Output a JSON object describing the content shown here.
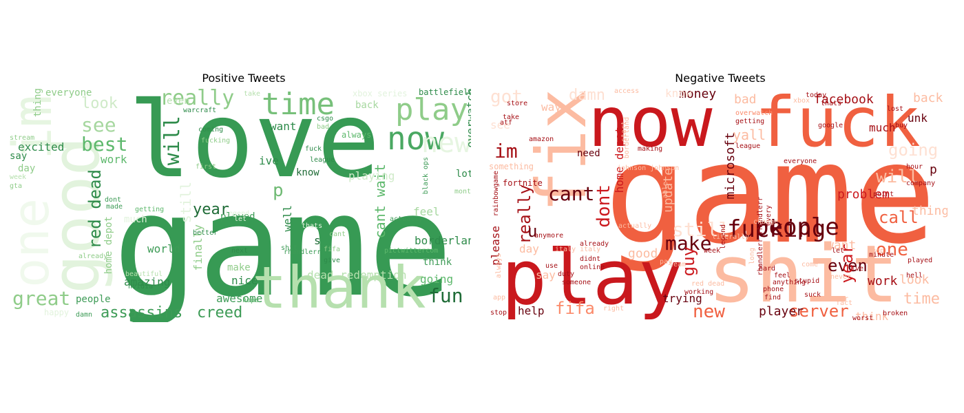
{
  "positive": {
    "title": "Positive Tweets",
    "words": [
      {
        "text": "game",
        "color": "#379a54"
      },
      {
        "text": "love",
        "color": "#379a54"
      },
      {
        "text": "thank",
        "color": "#b6e0ae"
      },
      {
        "text": "good",
        "color": "#e2f3dd"
      },
      {
        "text": "im",
        "color": "#e6f5e1"
      },
      {
        "text": "one",
        "color": "#f0f9ed"
      },
      {
        "text": "play",
        "color": "#8fcc89"
      },
      {
        "text": "now",
        "color": "#4aa862"
      },
      {
        "text": "time",
        "color": "#77c07a"
      },
      {
        "text": "really",
        "color": "#8fcc89"
      },
      {
        "text": "new",
        "color": "#e6f5e1"
      },
      {
        "text": "best",
        "color": "#5db86c"
      },
      {
        "text": "see",
        "color": "#a6d79f"
      },
      {
        "text": "look",
        "color": "#cfeac8"
      },
      {
        "text": "great",
        "color": "#8fcc89"
      },
      {
        "text": "will",
        "color": "#2e8b4a"
      },
      {
        "text": "red dead",
        "color": "#2e8b4a"
      },
      {
        "text": "fun",
        "color": "#1e6b36"
      },
      {
        "text": "assassins",
        "color": "#3d9b56"
      },
      {
        "text": "creed",
        "color": "#3d9b56"
      },
      {
        "text": "cant wait",
        "color": "#5db86c"
      },
      {
        "text": "year",
        "color": "#1e6b36"
      },
      {
        "text": "p",
        "color": "#6fba74"
      },
      {
        "text": "borderland",
        "color": "#2e8b4a"
      },
      {
        "text": "overwatch",
        "color": "#2e8b4a"
      },
      {
        "text": "everyone",
        "color": "#8fcc89"
      },
      {
        "text": "battlefield",
        "color": "#2e8b4a"
      },
      {
        "text": "back",
        "color": "#a6d79f"
      },
      {
        "text": "want",
        "color": "#2e8b4a"
      },
      {
        "text": "excited",
        "color": "#2e8b4a"
      },
      {
        "text": "say",
        "color": "#2e8b4a"
      },
      {
        "text": "day",
        "color": "#8fcc89"
      },
      {
        "text": "thing",
        "color": "#8fcc89"
      },
      {
        "text": "work",
        "color": "#5db86c"
      },
      {
        "text": "know",
        "color": "#1e6b36"
      },
      {
        "text": "played",
        "color": "#3d9b56"
      },
      {
        "text": "ive",
        "color": "#2e8b4a"
      },
      {
        "text": "lot",
        "color": "#2e8b4a"
      },
      {
        "text": "playing",
        "color": "#cfeac8"
      },
      {
        "text": "feel",
        "color": "#a6d79f"
      },
      {
        "text": "still",
        "color": "#e2f3dd"
      },
      {
        "text": "finally",
        "color": "#8fcc89"
      },
      {
        "text": "well",
        "color": "#2e8b4a"
      },
      {
        "text": "world",
        "color": "#3d9b56"
      },
      {
        "text": "make",
        "color": "#8fcc89"
      },
      {
        "text": "nice",
        "color": "#2e8b4a"
      },
      {
        "text": "awesome",
        "color": "#3d9b56"
      },
      {
        "text": "amazing",
        "color": "#2e8b4a"
      },
      {
        "text": "people",
        "color": "#3d9b56"
      },
      {
        "text": "going",
        "color": "#5db86c"
      },
      {
        "text": "think",
        "color": "#3d9b56"
      },
      {
        "text": "dead redemption",
        "color": "#b6e0ae"
      },
      {
        "text": "s",
        "color": "#1e6b36"
      },
      {
        "text": "home depot",
        "color": "#8fcc89"
      },
      {
        "text": "even",
        "color": "#b6e0ae"
      },
      {
        "text": "warcraft",
        "color": "#2e8b4a"
      },
      {
        "text": "always",
        "color": "#5db86c"
      },
      {
        "text": "coming",
        "color": "#2e8b4a"
      },
      {
        "text": "fucking",
        "color": "#8fcc89"
      },
      {
        "text": "first",
        "color": "#8fcc89"
      },
      {
        "text": "fuck",
        "color": "#2e8b4a"
      },
      {
        "text": "league",
        "color": "#2e8b4a"
      },
      {
        "text": "xbox series",
        "color": "#e2f3dd"
      },
      {
        "text": "csgo",
        "color": "#2e8b4a"
      },
      {
        "text": "bad",
        "color": "#8fcc89"
      },
      {
        "text": "rhandlerr",
        "color": "#3d9b56"
      },
      {
        "text": "shit",
        "color": "#3d9b56"
      },
      {
        "text": "next",
        "color": "#2e8b4a"
      },
      {
        "text": "better",
        "color": "#2e8b4a"
      },
      {
        "text": "getting",
        "color": "#5db86c"
      },
      {
        "text": "nvidia",
        "color": "#2e8b4a"
      },
      {
        "text": "hope",
        "color": "#5db86c"
      },
      {
        "text": "fifa",
        "color": "#8fcc89"
      },
      {
        "text": "give",
        "color": "#2e8b4a"
      },
      {
        "text": "pictwittercom",
        "color": "#5db86c"
      },
      {
        "text": "actually",
        "color": "#3d9b56"
      },
      {
        "text": "month",
        "color": "#8fcc89"
      },
      {
        "text": "dont",
        "color": "#3d9b56"
      },
      {
        "text": "made",
        "color": "#3d9b56"
      },
      {
        "text": "black ops",
        "color": "#3d9b56"
      },
      {
        "text": "stream",
        "color": "#8fcc89"
      },
      {
        "text": "week",
        "color": "#b6e0ae"
      },
      {
        "text": "already",
        "color": "#8fcc89"
      },
      {
        "text": "beautiful",
        "color": "#b6e0ae"
      },
      {
        "text": "happy",
        "color": "#e2f3dd"
      },
      {
        "text": "damn",
        "color": "#3d9b56"
      },
      {
        "text": "take",
        "color": "#b6e0ae"
      },
      {
        "text": "much",
        "color": "#e2f3dd"
      },
      {
        "text": "legend",
        "color": "#e2f3dd"
      },
      {
        "text": "thats",
        "color": "#e2f3dd"
      },
      {
        "text": "let",
        "color": "#e2f3dd"
      },
      {
        "text": "cant",
        "color": "#8fcc89"
      },
      {
        "text": "gta",
        "color": "#8fcc89"
      }
    ]
  },
  "negative": {
    "title": "Negative Tweets",
    "words": [
      {
        "text": "game",
        "color": "#f06040"
      },
      {
        "text": "now",
        "color": "#c9181d"
      },
      {
        "text": "fuck",
        "color": "#f06040"
      },
      {
        "text": "play",
        "color": "#c9181d"
      },
      {
        "text": "shit",
        "color": "#fcbba1"
      },
      {
        "text": "fix",
        "color": "#fcbba1"
      },
      {
        "text": "people",
        "color": "#67000d"
      },
      {
        "text": "fucking",
        "color": "#67000d"
      },
      {
        "text": "make",
        "color": "#67000d"
      },
      {
        "text": "im",
        "color": "#a50f15"
      },
      {
        "text": "cant",
        "color": "#67000d"
      },
      {
        "text": "dont",
        "color": "#cb181d"
      },
      {
        "text": "really",
        "color": "#a50f15"
      },
      {
        "text": "still",
        "color": "#fee0d2"
      },
      {
        "text": "fifa",
        "color": "#fb8a6a"
      },
      {
        "text": "server",
        "color": "#f06040"
      },
      {
        "text": "new",
        "color": "#f06040"
      },
      {
        "text": "one",
        "color": "#f06040"
      },
      {
        "text": "will",
        "color": "#fcbba1"
      },
      {
        "text": "call",
        "color": "#f06040"
      },
      {
        "text": "even",
        "color": "#67000d"
      },
      {
        "text": "year",
        "color": "#cb181d"
      },
      {
        "text": "guy",
        "color": "#cb181d"
      },
      {
        "text": "u",
        "color": "#67000d"
      },
      {
        "text": "got",
        "color": "#fee0d2"
      },
      {
        "text": "damn",
        "color": "#fee0d2"
      },
      {
        "text": "money",
        "color": "#67000d"
      },
      {
        "text": "facebook",
        "color": "#a50f15"
      },
      {
        "text": "going",
        "color": "#fee0d2"
      },
      {
        "text": "back",
        "color": "#fcbba1"
      },
      {
        "text": "unk",
        "color": "#67000d"
      },
      {
        "text": "much",
        "color": "#a50f15"
      },
      {
        "text": "yall",
        "color": "#fcbba1"
      },
      {
        "text": "bad",
        "color": "#fcbba1"
      },
      {
        "text": "problem",
        "color": "#cb181d"
      },
      {
        "text": "p",
        "color": "#67000d"
      },
      {
        "text": "thing",
        "color": "#fcbba1"
      },
      {
        "text": "time",
        "color": "#fcbba1"
      },
      {
        "text": "look",
        "color": "#fcbba1"
      },
      {
        "text": "work",
        "color": "#a50f15"
      },
      {
        "text": "player",
        "color": "#67000d"
      },
      {
        "text": "think",
        "color": "#fcbba1"
      },
      {
        "text": "trying",
        "color": "#67000d"
      },
      {
        "text": "help",
        "color": "#67000d"
      },
      {
        "text": "please",
        "color": "#a50f15"
      },
      {
        "text": "say",
        "color": "#fcbba1"
      },
      {
        "text": "day",
        "color": "#fcbba1"
      },
      {
        "text": "good",
        "color": "#fcbba1"
      },
      {
        "text": "want",
        "color": "#fcbba1"
      },
      {
        "text": "update",
        "color": "#fcbba1"
      },
      {
        "text": "microsoft",
        "color": "#67000d"
      },
      {
        "text": "home depot",
        "color": "#cb181d"
      },
      {
        "text": "need",
        "color": "#67000d"
      },
      {
        "text": "way",
        "color": "#fcbba1"
      },
      {
        "text": "see",
        "color": "#fee0d2"
      },
      {
        "text": "know",
        "color": "#fee0d2"
      },
      {
        "text": "something",
        "color": "#fcbba1"
      },
      {
        "text": "fortnite",
        "color": "#a50f15"
      },
      {
        "text": "johnson johnson",
        "color": "#fcbba1"
      },
      {
        "text": "league",
        "color": "#a50f15"
      },
      {
        "text": "overwatch",
        "color": "#fb8a6a"
      },
      {
        "text": "getting",
        "color": "#a50f15"
      },
      {
        "text": "everyone",
        "color": "#a50f15"
      },
      {
        "text": "google",
        "color": "#a50f15"
      },
      {
        "text": "thats",
        "color": "#a50f15"
      },
      {
        "text": "today",
        "color": "#a50f15"
      },
      {
        "text": "team",
        "color": "#fcbba1"
      },
      {
        "text": "actually",
        "color": "#fcbba1"
      },
      {
        "text": "already",
        "color": "#a50f15"
      },
      {
        "text": "didnt",
        "color": "#a50f15"
      },
      {
        "text": "online",
        "color": "#a50f15"
      },
      {
        "text": "right",
        "color": "#fcbba1"
      },
      {
        "text": "pay",
        "color": "#fcbba1"
      },
      {
        "text": "working",
        "color": "#a50f15"
      },
      {
        "text": "red dead",
        "color": "#fcbba1"
      },
      {
        "text": "feel",
        "color": "#a50f15"
      },
      {
        "text": "hard",
        "color": "#a50f15"
      },
      {
        "text": "anything",
        "color": "#a50f15"
      },
      {
        "text": "phone",
        "color": "#a50f15"
      },
      {
        "text": "find",
        "color": "#a50f15"
      },
      {
        "text": "come",
        "color": "#fcbba1"
      },
      {
        "text": "long",
        "color": "#fcbba1"
      },
      {
        "text": "stupid",
        "color": "#a50f15"
      },
      {
        "text": "suck",
        "color": "#a50f15"
      },
      {
        "text": "keep",
        "color": "#fcbba1"
      },
      {
        "text": "minute",
        "color": "#a50f15"
      },
      {
        "text": "ive",
        "color": "#a50f15"
      },
      {
        "text": "let",
        "color": "#a50f15"
      },
      {
        "text": "never",
        "color": "#fcbba1"
      },
      {
        "text": "played",
        "color": "#a50f15"
      },
      {
        "text": "hell",
        "color": "#a50f15"
      },
      {
        "text": "broken",
        "color": "#a50f15"
      },
      {
        "text": "worst",
        "color": "#a50f15"
      },
      {
        "text": "stop",
        "color": "#a50f15"
      },
      {
        "text": "use",
        "color": "#a50f15"
      },
      {
        "text": "app",
        "color": "#fcbba1"
      },
      {
        "text": "store",
        "color": "#a50f15"
      },
      {
        "text": "take",
        "color": "#a50f15"
      },
      {
        "text": "amazon",
        "color": "#a50f15"
      },
      {
        "text": "atf",
        "color": "#a50f15"
      },
      {
        "text": "lost",
        "color": "#a50f15"
      },
      {
        "text": "company",
        "color": "#a50f15"
      },
      {
        "text": "hour",
        "color": "#a50f15"
      },
      {
        "text": "every",
        "color": "#a50f15"
      },
      {
        "text": "rhandlerr rhandlerr",
        "color": "#a50f15"
      },
      {
        "text": "legend",
        "color": "#a50f15"
      },
      {
        "text": "literally",
        "color": "#fcbba1"
      },
      {
        "text": "week",
        "color": "#a50f15"
      },
      {
        "text": "someone",
        "color": "#a50f15"
      },
      {
        "text": "making",
        "color": "#a50f15"
      },
      {
        "text": "duty",
        "color": "#a50f15"
      },
      {
        "text": "rainbowgame",
        "color": "#a50f15"
      },
      {
        "text": "start",
        "color": "#fcbba1"
      },
      {
        "text": "fact",
        "color": "#fcbba1"
      },
      {
        "text": "access",
        "color": "#fcbba1"
      },
      {
        "text": "xbox",
        "color": "#fcbba1"
      },
      {
        "text": "change",
        "color": "#fcbba1"
      },
      {
        "text": "better",
        "color": "#fcbba1"
      },
      {
        "text": "italy italy",
        "color": "#fcbba1"
      },
      {
        "text": "always",
        "color": "#fcbba1"
      },
      {
        "text": "anymore",
        "color": "#a50f15"
      },
      {
        "text": "borderland",
        "color": "#fcbba1"
      },
      {
        "text": "able",
        "color": "#fcbba1"
      },
      {
        "text": "buy",
        "color": "#a50f15"
      },
      {
        "text": "point",
        "color": "#a50f15"
      }
    ]
  }
}
